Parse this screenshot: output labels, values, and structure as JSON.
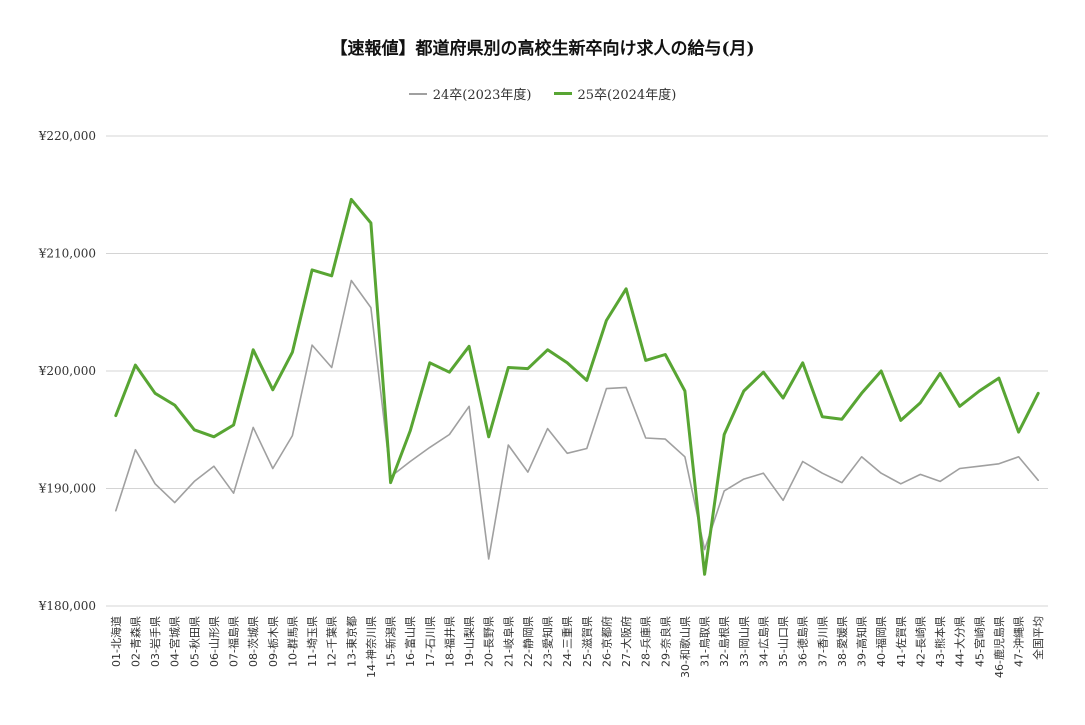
{
  "chart_data": {
    "type": "line",
    "title": "【速報値】都道府県別の高校生新卒向け求人の給与(月)",
    "xlabel": "",
    "ylabel": "",
    "ylim": [
      180000,
      220000
    ],
    "y_ticks": [
      180000,
      190000,
      200000,
      210000,
      220000
    ],
    "y_tick_labels": [
      "¥180,000",
      "¥190,000",
      "¥200,000",
      "¥210,000",
      "¥220,000"
    ],
    "grid": true,
    "legend_position": "top-center",
    "categories": [
      "01-北海道",
      "02-青森県",
      "03-岩手県",
      "04-宮城県",
      "05-秋田県",
      "06-山形県",
      "07-福島県",
      "08-茨城県",
      "09-栃木県",
      "10-群馬県",
      "11-埼玉県",
      "12-千葉県",
      "13-東京都",
      "14-神奈川県",
      "15-新潟県",
      "16-富山県",
      "17-石川県",
      "18-福井県",
      "19-山梨県",
      "20-長野県",
      "21-岐阜県",
      "22-静岡県",
      "23-愛知県",
      "24-三重県",
      "25-滋賀県",
      "26-京都府",
      "27-大阪府",
      "28-兵庫県",
      "29-奈良県",
      "30-和歌山県",
      "31-鳥取県",
      "32-島根県",
      "33-岡山県",
      "34-広島県",
      "35-山口県",
      "36-徳島県",
      "37-香川県",
      "38-愛媛県",
      "39-高知県",
      "40-福岡県",
      "41-佐賀県",
      "42-長崎県",
      "43-熊本県",
      "44-大分県",
      "45-宮崎県",
      "46-鹿児島県",
      "47-沖縄県",
      "全国平均"
    ],
    "series": [
      {
        "name": "24卒(2023年度)",
        "color": "#a0a0a0",
        "values": [
          188100,
          193300,
          190400,
          188800,
          190600,
          191900,
          189600,
          195200,
          191700,
          194500,
          202200,
          200300,
          207700,
          205400,
          191000,
          192300,
          193500,
          194600,
          197000,
          184000,
          193700,
          191400,
          195100,
          193000,
          193400,
          198500,
          198600,
          194300,
          194200,
          192700,
          184800,
          189800,
          190800,
          191300,
          189000,
          192300,
          191300,
          190500,
          192700,
          191300,
          190400,
          191200,
          190600,
          191700,
          191900,
          192100,
          192700,
          190700
        ]
      },
      {
        "name": "25卒(2024年度)",
        "color": "#58a533",
        "values": [
          196200,
          200500,
          198100,
          197100,
          195000,
          194400,
          195400,
          201800,
          198400,
          201600,
          208600,
          208100,
          214600,
          212600,
          190500,
          194900,
          200700,
          199900,
          202100,
          194400,
          200300,
          200200,
          201800,
          200700,
          199200,
          204300,
          207000,
          200900,
          201400,
          198300,
          182700,
          194600,
          198300,
          199900,
          197700,
          200700,
          196100,
          195900,
          198100,
          200000,
          195800,
          197300,
          199800,
          197000,
          198300,
          199400,
          194800,
          198100
        ]
      }
    ]
  }
}
